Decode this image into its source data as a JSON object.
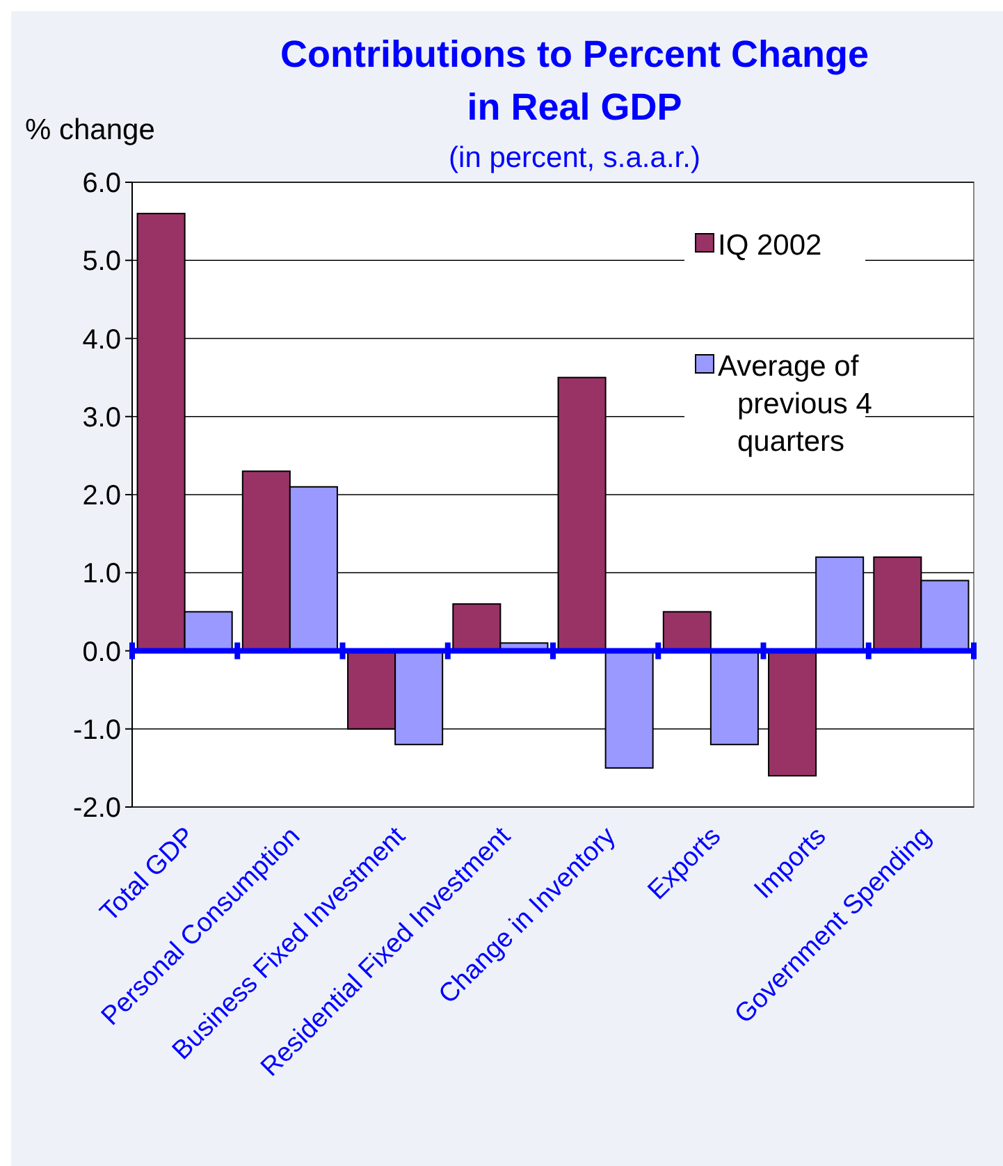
{
  "chart_data": {
    "type": "bar",
    "title": "Contributions to Percent Change in Real GDP",
    "subtitle": "(in percent, s.a.a.r.)",
    "ylabel": "% change",
    "categories": [
      "Total GDP",
      "Personal Consumption",
      "Business Fixed Investment",
      "Residential Fixed Investment",
      "Change in Inventory",
      "Exports",
      "Imports",
      "Government Spending"
    ],
    "series": [
      {
        "name": "IQ 2002",
        "color": "#993366",
        "values": [
          5.6,
          2.3,
          -1.0,
          0.6,
          3.5,
          0.5,
          -1.6,
          1.2
        ]
      },
      {
        "name": "Average of previous 4 quarters",
        "color": "#9999ff",
        "values": [
          0.5,
          2.1,
          -1.2,
          0.1,
          -1.5,
          -1.2,
          1.2,
          0.9
        ]
      }
    ],
    "ylim": [
      -2,
      6
    ],
    "yticks": [
      {
        "value": -2,
        "label": "-2.0"
      },
      {
        "value": -1,
        "label": "-1.0"
      },
      {
        "value": 0,
        "label": "0.0"
      },
      {
        "value": 1,
        "label": "1.0"
      },
      {
        "value": 2,
        "label": "2.0"
      },
      {
        "value": 3,
        "label": "3.0"
      },
      {
        "value": 4,
        "label": "4.0"
      },
      {
        "value": 5,
        "label": "5.0"
      },
      {
        "value": 6,
        "label": "6.0"
      }
    ],
    "ref_lines": [
      {
        "axis": "y",
        "value": 0,
        "color": "#0000ff"
      }
    ],
    "grid": "y",
    "legend": "top right"
  }
}
